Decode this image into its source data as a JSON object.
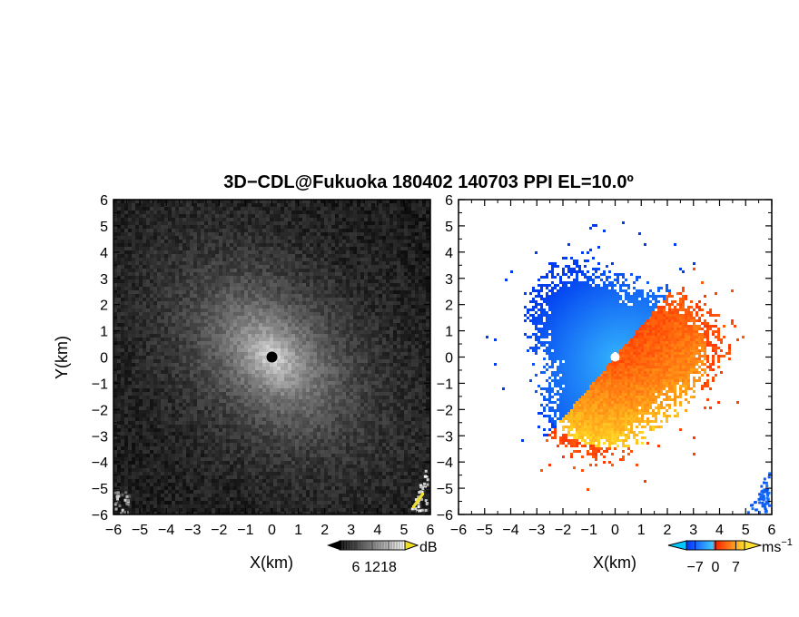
{
  "title": "3D−CDL@Fukuoka 180402 140703 PPI EL=10.0º",
  "chart_data": [
    {
      "type": "heatmap",
      "panel": "left",
      "quantity": "intensity",
      "xlabel": "X(km)",
      "ylabel": "Y(km)",
      "xlim": [
        -6,
        6
      ],
      "ylim": [
        -6,
        6
      ],
      "x_ticks": [
        "−6",
        "−5",
        "−4",
        "−3",
        "−2",
        "−1",
        "0",
        "1",
        "2",
        "3",
        "4",
        "5",
        "6"
      ],
      "y_ticks": [
        "6",
        "5",
        "4",
        "3",
        "2",
        "1",
        "0",
        "−1",
        "−2",
        "−3",
        "−4",
        "−5",
        "−6"
      ],
      "colorbar": {
        "unit": "dB",
        "ticks": [
          6,
          12,
          18
        ],
        "tick_labels": [
          "6",
          "12",
          "18"
        ],
        "range": [
          0,
          24
        ],
        "colors": [
          "#000000",
          "#ffffff"
        ],
        "arrow_color": "#f0e020"
      },
      "colormap": "grayscale",
      "center_marker": {
        "x": 0,
        "y": 0,
        "color": "#000000"
      }
    },
    {
      "type": "heatmap",
      "panel": "right",
      "quantity": "doppler velocity",
      "xlabel": "X(km)",
      "xlim": [
        -6,
        6
      ],
      "ylim": [
        -6,
        6
      ],
      "x_ticks": [
        "−6",
        "−5",
        "−4",
        "−3",
        "−2",
        "−1",
        "0",
        "1",
        "2",
        "3",
        "4",
        "5",
        "6"
      ],
      "y_ticks": [
        "6",
        "5",
        "4",
        "3",
        "2",
        "1",
        "0",
        "−1",
        "−2",
        "−3",
        "−4",
        "−5",
        "−6"
      ],
      "colorbar": {
        "unit": "ms",
        "unit_exponent": "−1",
        "ticks": [
          -7,
          0,
          7
        ],
        "tick_labels": [
          "−7",
          "0",
          "7"
        ],
        "range": [
          -10,
          10
        ],
        "colors": [
          "#0030ff",
          "#40c8ff",
          "#ff2000",
          "#ffe030"
        ]
      },
      "colormap": "blue-negative / red-yellow-positive",
      "center_marker": {
        "x": 0,
        "y": 0,
        "color": "#ffffff"
      }
    }
  ]
}
